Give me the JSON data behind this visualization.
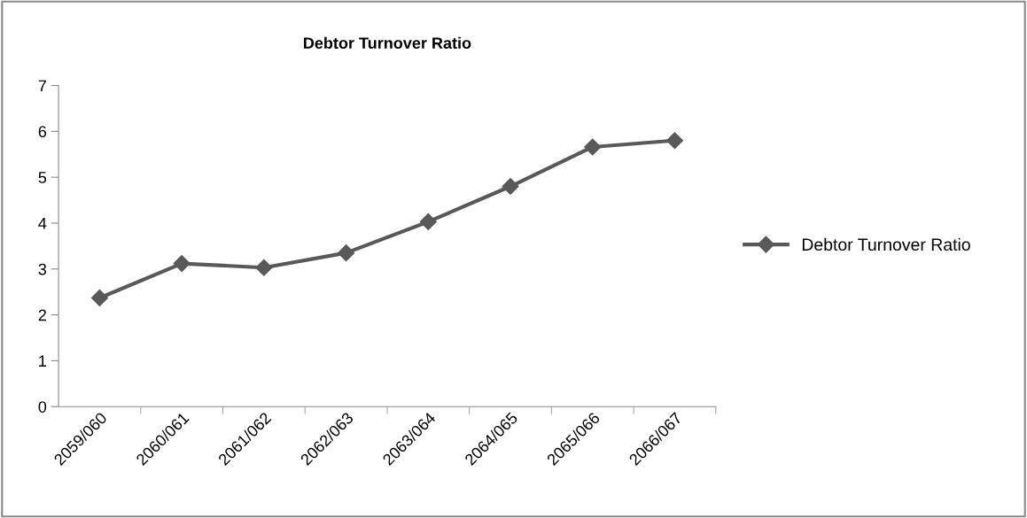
{
  "chart_data": {
    "type": "line",
    "title": "Debtor Turnover Ratio",
    "categories": [
      "2059/060",
      "2060/061",
      "2061/062",
      "2062/063",
      "2063/064",
      "2064/065",
      "2065/066",
      "2066/067"
    ],
    "series": [
      {
        "name": "Debtor Turnover Ratio",
        "color": "#595959",
        "values": [
          2.37,
          3.12,
          3.03,
          3.35,
          4.03,
          4.8,
          5.66,
          5.8
        ]
      }
    ],
    "ylim": [
      0,
      7
    ],
    "yticks": [
      0,
      1,
      2,
      3,
      4,
      5,
      6,
      7
    ],
    "grid": false,
    "legend": "right",
    "marker": "diamond",
    "line_style": "solid"
  }
}
